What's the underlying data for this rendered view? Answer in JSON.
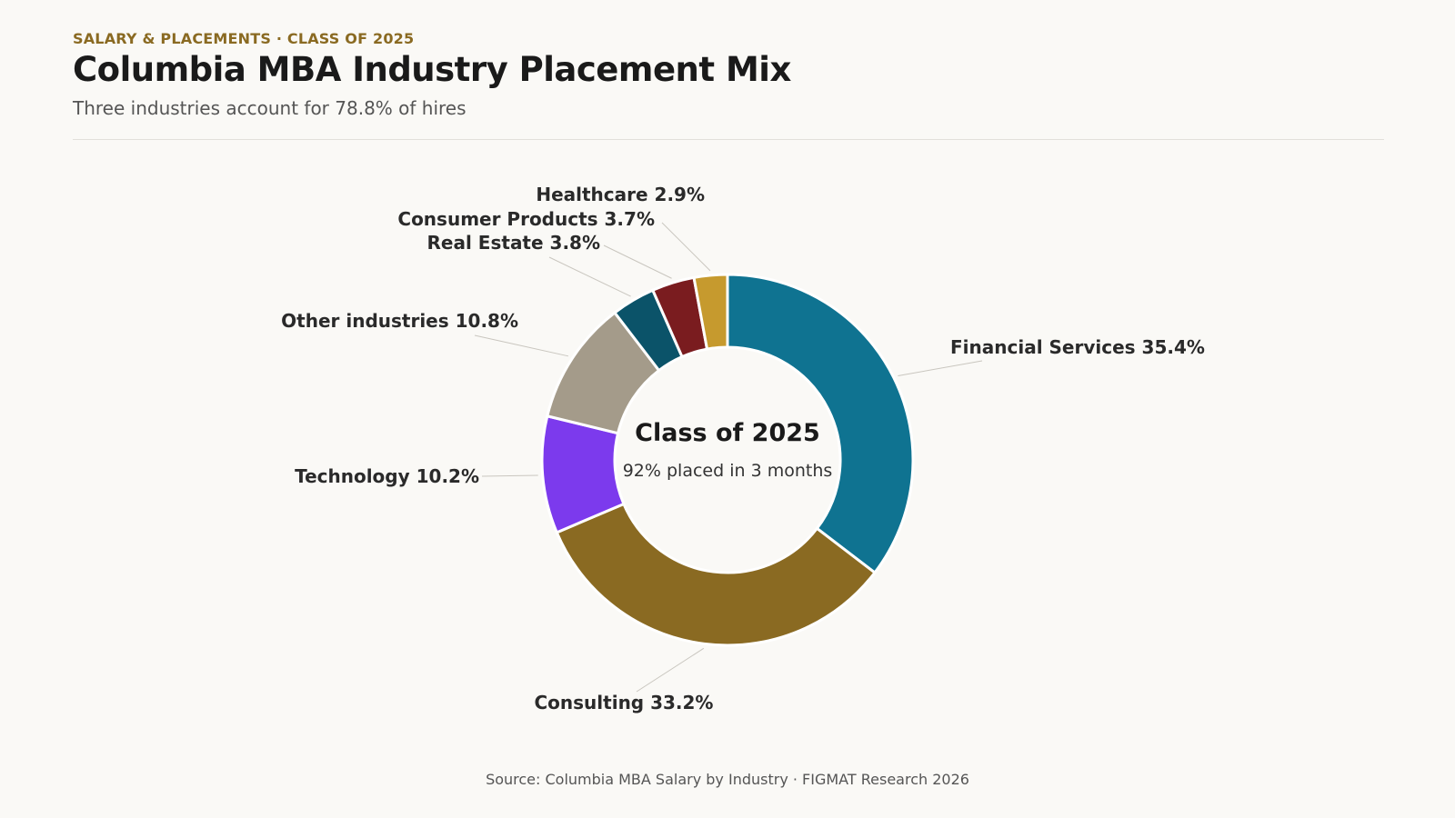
{
  "header": {
    "eyebrow": "SALARY & PLACEMENTS · CLASS OF 2025",
    "title": "Columbia MBA Industry Placement Mix",
    "subtitle": "Three industries account for 78.8% of hires"
  },
  "chart_data": {
    "type": "pie",
    "variant": "donut",
    "center_title": "Class of 2025",
    "center_subtitle": "92% placed in 3 months",
    "unit": "%",
    "slices": [
      {
        "label": "Financial Services",
        "value": 35.4,
        "color": "#0f7391"
      },
      {
        "label": "Consulting",
        "value": 33.2,
        "color": "#8a6a22"
      },
      {
        "label": "Technology",
        "value": 10.2,
        "color": "#7c3aed"
      },
      {
        "label": "Other industries",
        "value": 10.8,
        "color": "#a49b8a"
      },
      {
        "label": "Real Estate",
        "value": 3.8,
        "color": "#0b5369"
      },
      {
        "label": "Consumer Products",
        "value": 3.7,
        "color": "#7a1c1f"
      },
      {
        "label": "Healthcare",
        "value": 2.9,
        "color": "#c69a2e"
      }
    ]
  },
  "footer": {
    "source": "Source: Columbia MBA Salary by Industry · FIGMAT Research 2026"
  }
}
